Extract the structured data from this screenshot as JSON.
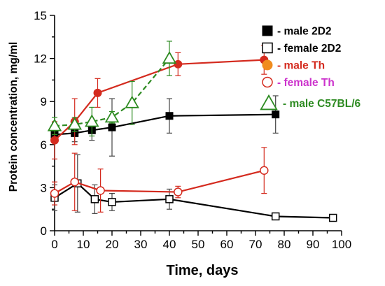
{
  "chart_data": {
    "type": "line",
    "title": "",
    "xlabel": "Time, days",
    "ylabel": "Protein concentration, mg/ml",
    "xlim": [
      0,
      100
    ],
    "ylim": [
      0,
      15
    ],
    "x_ticks": [
      "0",
      "10",
      "20",
      "30",
      "40",
      "50",
      "60",
      "70",
      "80",
      "90",
      "100"
    ],
    "y_ticks": [
      "0",
      "3",
      "6",
      "9",
      "12",
      "15"
    ],
    "grid": false,
    "legend_position": "top-right",
    "series": [
      {
        "name": "- male 2D2",
        "marker": "square-filled",
        "color": "#000000",
        "line_style": "solid",
        "x": [
          0,
          7,
          13,
          20,
          40,
          77
        ],
        "y": [
          6.7,
          6.8,
          7.0,
          7.2,
          8.0,
          8.1
        ],
        "err": [
          0.6,
          0.6,
          0.7,
          2.0,
          1.2,
          1.3
        ]
      },
      {
        "name": "- female 2D2",
        "marker": "square-open",
        "color": "#000000",
        "line_style": "solid",
        "x": [
          0,
          8,
          14,
          20,
          40,
          77,
          97
        ],
        "y": [
          2.3,
          3.3,
          2.2,
          2.0,
          2.2,
          1.0,
          0.9
        ],
        "err": [
          0.9,
          2.0,
          1.0,
          0.6,
          0.7,
          0,
          0
        ]
      },
      {
        "name": "- male Th",
        "marker": "circle-filled",
        "color": "#d42a1e",
        "line_style": "solid",
        "x": [
          0,
          7,
          15,
          43,
          73
        ],
        "y": [
          6.3,
          7.6,
          9.6,
          11.6,
          11.9
        ],
        "err": [
          1.3,
          1.6,
          1.0,
          0.8,
          1.0
        ]
      },
      {
        "name": "- female Th",
        "marker": "circle-open",
        "color": "#d42a1e",
        "line_style": "solid",
        "x": [
          0,
          7,
          16,
          43,
          73
        ],
        "y": [
          2.6,
          3.4,
          2.8,
          2.7,
          4.2
        ],
        "err": [
          0.8,
          2.0,
          1.5,
          0.4,
          1.6
        ]
      },
      {
        "name": "- male C57BL/6",
        "marker": "triangle-open",
        "color": "#2e8b22",
        "line_style": "dashed",
        "x": [
          0,
          7,
          13,
          20,
          27,
          40
        ],
        "y": [
          7.3,
          7.4,
          7.6,
          7.9,
          8.9,
          12.0
        ],
        "err": [
          0.6,
          0.5,
          1.0,
          0.4,
          1.5,
          1.2
        ]
      }
    ],
    "legend_text_colors": [
      "#000000",
      "#000000",
      "#d42a1e",
      "#cc33cc",
      "#2e8b22"
    ],
    "legend_marker_colors": [
      "#000000",
      "#000000",
      "#f08c1e",
      "#d42a1e",
      "#2e8b22"
    ]
  }
}
